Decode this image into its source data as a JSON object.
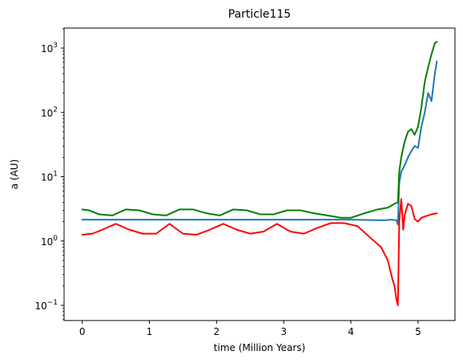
{
  "chart_data": {
    "type": "line",
    "title": "Particle115",
    "xlabel": "time (Million Years)",
    "ylabel": "a (AU)",
    "xlim": [
      -0.27,
      5.55
    ],
    "ylim": [
      0.058,
      2050
    ],
    "yscale": "log",
    "grid": false,
    "x_ticks": [
      0,
      1,
      2,
      3,
      4,
      5
    ],
    "x_tick_labels": [
      "0",
      "1",
      "2",
      "3",
      "4",
      "5"
    ],
    "y_ticks": [
      0.1,
      1,
      10,
      100,
      1000
    ],
    "y_tick_labels": [
      {
        "base": "10",
        "exp": "−1"
      },
      {
        "base": "10",
        "exp": "0"
      },
      {
        "base": "10",
        "exp": "1"
      },
      {
        "base": "10",
        "exp": "2"
      },
      {
        "base": "10",
        "exp": "3"
      }
    ],
    "series": [
      {
        "color": "#1f77b4",
        "x": [
          0,
          0.5,
          1,
          1.5,
          2,
          2.5,
          3,
          3.5,
          4,
          4.3,
          4.5,
          4.6,
          4.68,
          4.7,
          4.72,
          4.75,
          4.8,
          4.85,
          4.9,
          4.95,
          5.0,
          5.05,
          5.1,
          5.15,
          5.2,
          5.25,
          5.28
        ],
        "y": [
          2.15,
          2.15,
          2.15,
          2.15,
          2.15,
          2.15,
          2.15,
          2.15,
          2.15,
          2.12,
          2.1,
          2.15,
          2.1,
          1.8,
          8,
          12,
          15,
          20,
          25,
          30,
          28,
          60,
          100,
          200,
          150,
          400,
          620
        ]
      },
      {
        "color": "#008000",
        "x": [
          0,
          0.1,
          0.25,
          0.45,
          0.65,
          0.85,
          1.05,
          1.25,
          1.45,
          1.65,
          1.85,
          2.05,
          2.25,
          2.45,
          2.65,
          2.85,
          3.05,
          3.25,
          3.45,
          3.65,
          3.85,
          4.0,
          4.2,
          4.4,
          4.55,
          4.65,
          4.7,
          4.72,
          4.75,
          4.8,
          4.85,
          4.9,
          4.95,
          5.0,
          5.05,
          5.1,
          5.15,
          5.2,
          5.25,
          5.28
        ],
        "y": [
          3.1,
          3.0,
          2.6,
          2.5,
          3.1,
          3.0,
          2.6,
          2.5,
          3.1,
          3.1,
          2.7,
          2.5,
          3.1,
          3.0,
          2.6,
          2.6,
          3.0,
          3.0,
          2.7,
          2.5,
          2.3,
          2.3,
          2.7,
          3.1,
          3.3,
          3.8,
          4.0,
          12,
          20,
          35,
          50,
          55,
          45,
          60,
          120,
          300,
          500,
          800,
          1200,
          1250
        ]
      },
      {
        "color": "#ff0000",
        "x": [
          0,
          0.15,
          0.3,
          0.5,
          0.7,
          0.9,
          1.1,
          1.3,
          1.5,
          1.7,
          1.9,
          2.1,
          2.3,
          2.5,
          2.7,
          2.9,
          3.1,
          3.3,
          3.5,
          3.7,
          3.9,
          4.1,
          4.3,
          4.45,
          4.55,
          4.62,
          4.65,
          4.68,
          4.7,
          4.72,
          4.75,
          4.78,
          4.8,
          4.85,
          4.9,
          4.95,
          5.0,
          5.05,
          5.1,
          5.15,
          5.2,
          5.25,
          5.28
        ],
        "y": [
          1.25,
          1.3,
          1.5,
          1.85,
          1.5,
          1.3,
          1.3,
          1.85,
          1.3,
          1.25,
          1.5,
          1.85,
          1.5,
          1.3,
          1.4,
          1.85,
          1.4,
          1.3,
          1.6,
          1.9,
          1.9,
          1.7,
          1.1,
          0.8,
          0.5,
          0.25,
          0.2,
          0.12,
          0.1,
          2,
          4.5,
          1.5,
          2.5,
          3.8,
          3.5,
          2.2,
          2.0,
          2.3,
          2.4,
          2.5,
          2.6,
          2.65,
          2.7
        ]
      }
    ]
  }
}
